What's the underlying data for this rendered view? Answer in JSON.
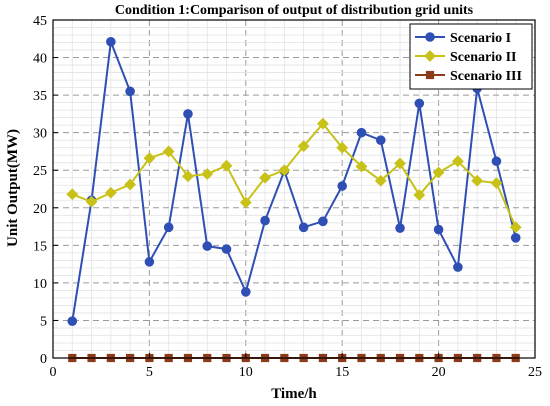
{
  "chart_data": {
    "type": "line",
    "title": "Condition 1:Comparison of output of distribution grid units",
    "xlabel": "Time/h",
    "ylabel": "Unit Output(MW)",
    "xlim": [
      0,
      25
    ],
    "ylim": [
      0,
      45
    ],
    "xticks": [
      0,
      5,
      10,
      15,
      20,
      25
    ],
    "yticks": [
      0,
      5,
      10,
      15,
      20,
      25,
      30,
      35,
      40,
      45
    ],
    "grid": true,
    "legend_position": "top-right",
    "x": [
      1,
      2,
      3,
      4,
      5,
      6,
      7,
      8,
      9,
      10,
      11,
      12,
      13,
      14,
      15,
      16,
      17,
      18,
      19,
      20,
      21,
      22,
      23,
      24
    ],
    "series": [
      {
        "name": "Scenario I",
        "color": "#2f4fb5",
        "marker": "circle",
        "values": [
          4.9,
          21.0,
          42.1,
          35.5,
          12.8,
          17.4,
          32.5,
          14.9,
          14.5,
          8.8,
          18.3,
          24.9,
          17.4,
          18.2,
          22.9,
          30.0,
          29.0,
          17.3,
          33.9,
          17.1,
          12.1,
          35.9,
          26.2,
          16.0
        ]
      },
      {
        "name": "Scenario II",
        "color": "#c8c218",
        "marker": "diamond",
        "values": [
          21.8,
          20.8,
          22.0,
          23.1,
          26.6,
          27.5,
          24.2,
          24.5,
          25.6,
          20.7,
          24.0,
          25.0,
          28.2,
          31.2,
          28.0,
          25.5,
          23.6,
          25.9,
          21.7,
          24.7,
          26.2,
          23.6,
          23.3,
          17.4
        ]
      },
      {
        "name": "Scenario III",
        "color": "#8b3a1a",
        "marker": "square",
        "values": [
          0,
          0,
          0,
          0,
          0,
          0,
          0,
          0,
          0,
          0,
          0,
          0,
          0,
          0,
          0,
          0,
          0,
          0,
          0,
          0,
          0,
          0,
          0,
          0
        ]
      }
    ]
  }
}
